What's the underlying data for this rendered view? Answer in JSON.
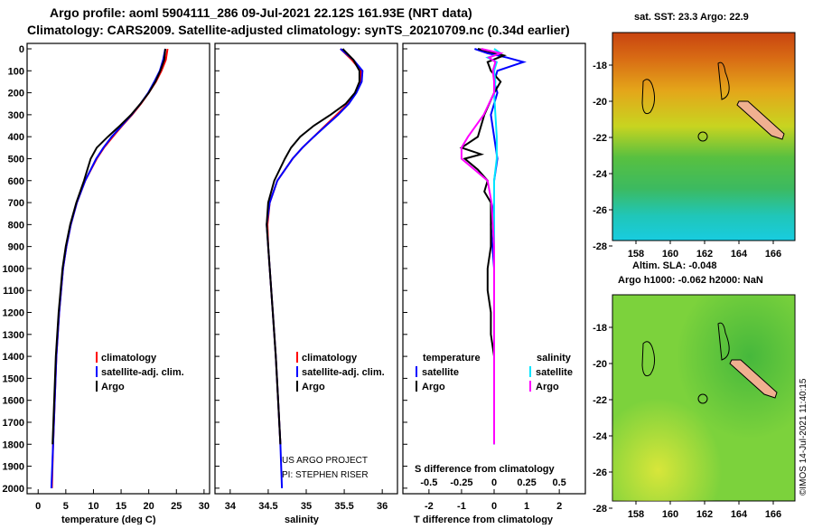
{
  "title_line1": "Argo profile: aoml 5904111_286 09-Jul-2021 22.12S 161.93E (NRT data)",
  "title_line2": "Climatology: CARS2009. Satellite-adjusted climatology: synTS_20210709.nc (0.34d earlier)",
  "colors": {
    "climatology": "#ff0000",
    "satellite": "#0000ff",
    "argo": "#000000",
    "sat_salinity": "#00e5ff",
    "clim_salinity": "#ff00ff"
  },
  "chart_data": [
    {
      "type": "line",
      "name": "temperature",
      "xlabel": "temperature (deg C)",
      "xlim": [
        -2,
        31
      ],
      "xticks": [
        "0",
        "5",
        "10",
        "15",
        "20",
        "25",
        "30"
      ],
      "ylim": [
        0,
        2050
      ],
      "yticks": [
        "0",
        "100",
        "200",
        "300",
        "400",
        "500",
        "600",
        "700",
        "800",
        "900",
        "1000",
        "1100",
        "1200",
        "1300",
        "1400",
        "1500",
        "1600",
        "1700",
        "1800",
        "1900",
        "2000"
      ],
      "legend": [
        "climatology",
        "satellite-adj. clim.",
        "Argo"
      ],
      "series": [
        {
          "name": "climatology",
          "depth": [
            0,
            50,
            100,
            150,
            200,
            250,
            300,
            350,
            400,
            450,
            500,
            600,
            700,
            800,
            900,
            1000,
            1200,
            1400,
            1600,
            1800,
            2000
          ],
          "values": [
            23.4,
            23.1,
            22.3,
            21.3,
            20.0,
            18.6,
            17.0,
            15.2,
            13.5,
            11.9,
            10.6,
            8.5,
            7.0,
            5.9,
            5.1,
            4.5,
            3.8,
            3.3,
            3.0,
            2.7,
            2.5
          ]
        },
        {
          "name": "satellite-adj. clim.",
          "depth": [
            0,
            50,
            100,
            150,
            200,
            250,
            300,
            350,
            400,
            450,
            500,
            600,
            700,
            800,
            900,
            1000,
            1200,
            1400,
            1600,
            1800,
            2000
          ],
          "values": [
            23.0,
            22.6,
            22.0,
            21.0,
            19.9,
            18.5,
            16.9,
            15.1,
            13.3,
            11.8,
            10.5,
            8.5,
            7.0,
            5.9,
            5.1,
            4.5,
            3.8,
            3.3,
            3.0,
            2.7,
            2.4
          ]
        },
        {
          "name": "Argo",
          "depth": [
            0,
            50,
            100,
            150,
            200,
            250,
            300,
            350,
            400,
            450,
            500,
            550,
            600,
            700,
            800,
            900,
            1000,
            1200,
            1400,
            1600,
            1800
          ],
          "values": [
            23.0,
            22.8,
            22.1,
            21.2,
            20.0,
            18.5,
            16.8,
            14.8,
            12.6,
            10.6,
            9.5,
            8.9,
            8.3,
            6.9,
            5.8,
            5.0,
            4.4,
            3.7,
            3.2,
            2.9,
            2.6
          ]
        }
      ]
    },
    {
      "type": "line",
      "name": "salinity",
      "xlabel": "salinity",
      "xlim": [
        33.8,
        36.2
      ],
      "xticks": [
        "34",
        "34.5",
        "35",
        "35.5",
        "36"
      ],
      "ylim": [
        0,
        2050
      ],
      "legend": [
        "climatology",
        "satellite-adj. clim.",
        "Argo"
      ],
      "credit_line1": "US ARGO PROJECT",
      "credit_line2": "PI: STEPHEN RISER",
      "series": [
        {
          "name": "climatology",
          "depth": [
            0,
            50,
            100,
            150,
            200,
            250,
            300,
            350,
            400,
            450,
            500,
            600,
            700,
            800,
            900,
            1000,
            1200,
            1400,
            1600,
            1800
          ],
          "values": [
            35.45,
            35.6,
            35.72,
            35.72,
            35.65,
            35.55,
            35.4,
            35.25,
            35.1,
            34.95,
            34.82,
            34.62,
            34.52,
            34.49,
            34.5,
            34.52,
            34.56,
            34.6,
            34.63,
            34.66
          ]
        },
        {
          "name": "satellite-adj. clim.",
          "depth": [
            0,
            50,
            100,
            150,
            200,
            250,
            300,
            350,
            400,
            450,
            500,
            600,
            700,
            800,
            900,
            1000,
            1200,
            1400,
            1600,
            1800,
            2000
          ],
          "values": [
            35.45,
            35.62,
            35.74,
            35.73,
            35.66,
            35.56,
            35.42,
            35.26,
            35.1,
            34.95,
            34.82,
            34.62,
            34.52,
            34.48,
            34.5,
            34.52,
            34.56,
            34.6,
            34.63,
            34.66,
            34.68
          ]
        },
        {
          "name": "Argo",
          "depth": [
            0,
            50,
            100,
            150,
            200,
            250,
            300,
            350,
            400,
            450,
            500,
            600,
            700,
            800,
            900,
            1000,
            1200,
            1400,
            1600,
            1800
          ],
          "values": [
            35.48,
            35.62,
            35.7,
            35.7,
            35.64,
            35.52,
            35.32,
            35.1,
            34.92,
            34.8,
            34.72,
            34.58,
            34.5,
            34.48,
            34.5,
            34.52,
            34.56,
            34.6,
            34.63,
            34.66
          ]
        }
      ]
    },
    {
      "type": "line",
      "name": "difference",
      "xlabel": "T difference from climatology",
      "xlabel_top": "S difference from climatology",
      "xlim": [
        -2.8,
        2.8
      ],
      "xticks": [
        "-2",
        "-1",
        "0",
        "1",
        "2"
      ],
      "sticks": [
        "-0.5",
        "-0.25",
        "0",
        "0.25",
        "0.5"
      ],
      "ylim": [
        0,
        2050
      ],
      "legend_left_title": "temperature",
      "legend_right_title": "salinity",
      "legend_left": [
        "satellite",
        "Argo"
      ],
      "legend_right": [
        "satellite",
        "Argo"
      ],
      "series": [
        {
          "name": "T satellite",
          "depth": [
            0,
            20,
            40,
            60,
            80,
            100,
            150,
            200,
            300,
            400,
            500,
            600,
            700,
            800,
            900,
            1000,
            1200,
            1400,
            1600,
            1800
          ],
          "values": [
            -0.6,
            -0.2,
            0.4,
            0.9,
            0.5,
            0.1,
            0.0,
            0.1,
            -0.1,
            0.0,
            0.1,
            0.0,
            0.0,
            -0.1,
            -0.05,
            0.0,
            0.0,
            0.0,
            0.0,
            0.0
          ]
        },
        {
          "name": "T Argo",
          "depth": [
            0,
            30,
            60,
            100,
            150,
            200,
            300,
            400,
            450,
            480,
            500,
            550,
            600,
            650,
            700,
            800,
            900,
            1000,
            1100,
            1200,
            1300,
            1400,
            1600,
            1800
          ],
          "values": [
            -0.5,
            0.3,
            -0.2,
            -0.1,
            0.2,
            0.0,
            -0.3,
            -0.5,
            -1.0,
            -0.4,
            -0.9,
            -0.5,
            -0.2,
            -0.3,
            -0.1,
            -0.1,
            -0.1,
            -0.2,
            -0.2,
            -0.1,
            -0.1,
            0.0,
            0.0,
            0.0
          ]
        },
        {
          "name": "S satellite",
          "depth": [
            0,
            20,
            40,
            60,
            100,
            150,
            200,
            300,
            400,
            500,
            600,
            800,
            1000,
            1200,
            1400,
            1600,
            1800
          ],
          "values": [
            0.0,
            0.05,
            -0.05,
            0.02,
            0.0,
            0.01,
            0.0,
            0.01,
            0.02,
            0.02,
            0.0,
            0.0,
            0.0,
            0.0,
            0.0,
            0.0,
            0.0
          ]
        },
        {
          "name": "S Argo",
          "depth": [
            0,
            20,
            40,
            60,
            100,
            150,
            200,
            300,
            400,
            450,
            500,
            550,
            600,
            700,
            800,
            900,
            1000,
            1200,
            1400,
            1600,
            1800
          ],
          "values": [
            -0.1,
            0.05,
            -0.04,
            0.01,
            -0.01,
            0.0,
            0.0,
            -0.08,
            -0.2,
            -0.25,
            -0.25,
            -0.15,
            -0.05,
            -0.02,
            -0.01,
            0.0,
            0.0,
            0.0,
            0.0,
            0.0,
            0.0
          ]
        }
      ]
    }
  ],
  "map_sst": {
    "title": "sat. SST: 23.3 Argo: 22.9",
    "xticks": [
      "158",
      "160",
      "162",
      "164",
      "166"
    ],
    "yticks": [
      "-18",
      "-20",
      "-22",
      "-24",
      "-26",
      "-28"
    ]
  },
  "map_sla": {
    "title_line1": "Altim. SLA: -0.048",
    "title_line2": "Argo h1000: -0.062 h2000: NaN",
    "xticks": [
      "158",
      "160",
      "162",
      "164",
      "166"
    ],
    "yticks": [
      "-18",
      "-20",
      "-22",
      "-24",
      "-26",
      "-28"
    ]
  },
  "imos_credit": "©IMOS 14-Jul-2021 11:40:15"
}
